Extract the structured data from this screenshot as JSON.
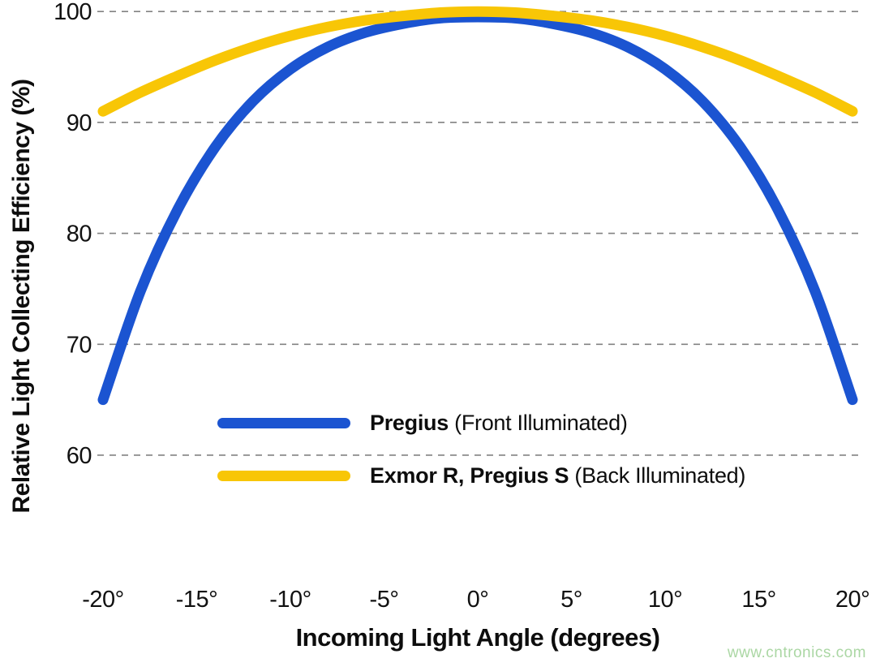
{
  "chart_data": {
    "type": "line",
    "title": "",
    "xlabel": "Incoming Light Angle (degrees)",
    "ylabel": "Relative Light Collecting Efficiency (%)",
    "xlim": [
      -20,
      20
    ],
    "ylim": [
      49.1,
      100.45
    ],
    "grid": "horizontal dashed gridlines at each y tick",
    "legend_position": "inside lower-center of plot",
    "yticks": [
      60,
      70,
      80,
      90,
      100
    ],
    "ytick_labels": [
      "60",
      "70",
      "80",
      "90",
      "100"
    ],
    "xticks": [
      -20,
      -15,
      -10,
      -5,
      0,
      5,
      10,
      15,
      20
    ],
    "xtick_labels": [
      "-20°",
      "-15°",
      "-10°",
      "-5°",
      "0°",
      "5°",
      "10°",
      "15°",
      "20°"
    ],
    "x": [
      -20,
      -18,
      -16,
      -14,
      -12,
      -10,
      -8,
      -6,
      -4,
      -2,
      0,
      2,
      4,
      6,
      8,
      10,
      12,
      14,
      16,
      18,
      20
    ],
    "series": [
      {
        "name_bold": "Pregius",
        "name_rest": " (Front Illuminated)",
        "color": "#1b54d1",
        "values": [
          65.0,
          74.8,
          82.2,
          87.8,
          91.9,
          94.8,
          96.8,
          98.1,
          98.9,
          99.4,
          99.5,
          99.4,
          98.9,
          98.1,
          96.8,
          94.8,
          91.9,
          87.8,
          82.2,
          74.8,
          65.0
        ]
      },
      {
        "name_bold": "Exmor R, Pregius S",
        "name_rest": " (Back Illuminated)",
        "color": "#f8c606",
        "values": [
          91.0,
          92.7,
          94.2,
          95.6,
          96.8,
          97.8,
          98.6,
          99.2,
          99.6,
          99.9,
          100.0,
          99.9,
          99.6,
          99.2,
          98.6,
          97.8,
          96.8,
          95.6,
          94.2,
          92.7,
          91.0
        ]
      }
    ]
  },
  "watermark": {
    "text": "www.cntronics.com",
    "color": "#abd7a4"
  },
  "style": {
    "gridline_color": "#828282",
    "curve_stroke_width": 13
  }
}
